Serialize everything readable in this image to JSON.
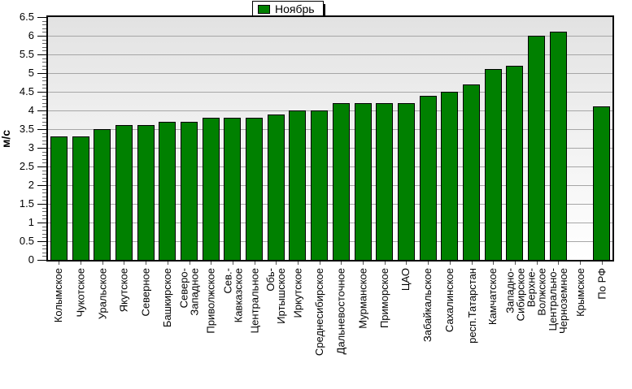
{
  "chart_data": {
    "type": "bar",
    "title": "",
    "ylabel": "м/с",
    "legend": [
      {
        "label": "Ноябрь",
        "color": "#008000"
      }
    ],
    "legend_position": "top-center",
    "ylim": [
      0,
      6.5
    ],
    "ytick_step": 0.5,
    "ytick_labels": [
      "0",
      "0.5",
      "1",
      "1.5",
      "2",
      "2.5",
      "3",
      "3.5",
      "4",
      "4.5",
      "5",
      "5.5",
      "6",
      "6.5"
    ],
    "grid": true,
    "categories": [
      "Колымское",
      "Чукотское",
      "Уральское",
      "Якутское",
      "Северное",
      "Башкирское",
      "Северо-Западное",
      "Приволжское",
      "Сев.-Кавказское",
      "Центральное",
      "Обь-Иртышское",
      "Иркутское",
      "Среднесибирское",
      "Дальневосточное",
      "Мурманское",
      "Приморское",
      "ЦАО",
      "Забайкальское",
      "Сахалинское",
      "респ.Татарстан",
      "Камчатское",
      "Западно-Сибирское",
      "Верхне-Волжское",
      "Центрально-Черноземное",
      "Крымское",
      "По РФ"
    ],
    "category_display_lines": [
      [
        "Колымское"
      ],
      [
        "Чукотское"
      ],
      [
        "Уральское"
      ],
      [
        "Якутское"
      ],
      [
        "Северное"
      ],
      [
        "Башкирское"
      ],
      [
        "Северо-",
        "Западное"
      ],
      [
        "Приволжское"
      ],
      [
        "Сев.-",
        "Кавказское"
      ],
      [
        "Центральное"
      ],
      [
        "Обь-",
        "Иртышское"
      ],
      [
        "Иркутское"
      ],
      [
        "Среднесибирское"
      ],
      [
        "Дальневосточное"
      ],
      [
        "Мурманское"
      ],
      [
        "Приморское"
      ],
      [
        "ЦАО"
      ],
      [
        "Забайкальское"
      ],
      [
        "Сахалинское"
      ],
      [
        "респ.Татарстан"
      ],
      [
        "Камчатское"
      ],
      [
        "Западно-",
        "Сибирское"
      ],
      [
        "Верхне-",
        "Волжское"
      ],
      [
        "Центрально-",
        "Черноземное"
      ],
      [
        "Крымское"
      ],
      [
        "По РФ"
      ]
    ],
    "values": [
      3.3,
      3.3,
      3.5,
      3.6,
      3.6,
      3.7,
      3.7,
      3.8,
      3.8,
      3.8,
      3.9,
      4.0,
      4.0,
      4.2,
      4.2,
      4.2,
      4.2,
      4.4,
      4.5,
      4.7,
      5.1,
      5.2,
      6.0,
      6.1,
      null,
      4.1
    ]
  },
  "colors": {
    "bar_fill": "#008000",
    "bar_border": "#000000",
    "plot_bg_top": "#e2e2e2",
    "plot_bg_bottom": "#ffffff",
    "gridline": "#a6a6a6",
    "axis": "#000000",
    "tick": "#555555",
    "legend_border": "#000000",
    "legend_shadow": "#000000"
  }
}
